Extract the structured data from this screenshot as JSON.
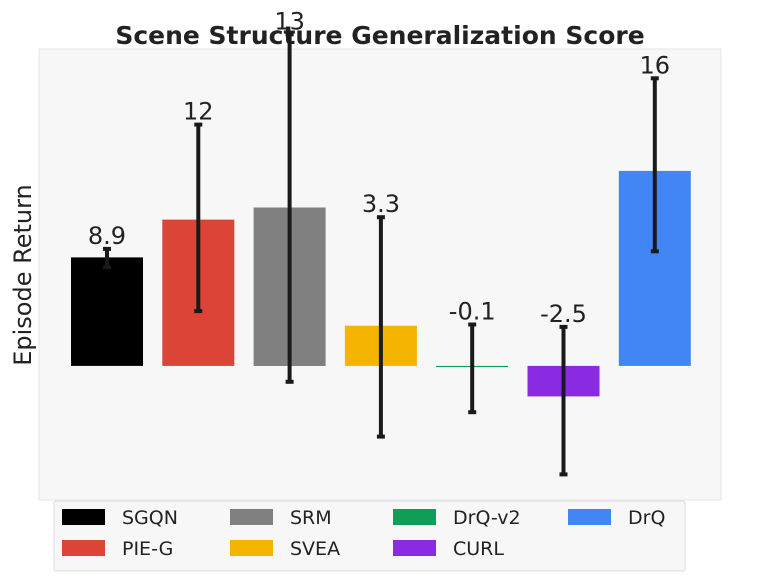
{
  "chart_data": {
    "type": "bar",
    "title": "Scene Structure Generalization Score",
    "xlabel": "",
    "ylabel": "Episode Return",
    "ylim": [
      -11,
      26
    ],
    "grid": false,
    "legend_position": "bottom",
    "categories": [
      "SGQN",
      "PIE-G",
      "SRM",
      "SVEA",
      "DrQ-v2",
      "CURL",
      "DrQ"
    ],
    "values": [
      8.9,
      12,
      13,
      3.3,
      -0.1,
      -2.5,
      16
    ],
    "error_low": [
      8.1,
      4.5,
      -1.3,
      -5.8,
      -3.8,
      -8.9,
      9.4
    ],
    "error_high": [
      9.6,
      19.8,
      27.2,
      12.2,
      3.4,
      3.2,
      23.6
    ],
    "labels": [
      "8.9",
      "12",
      "13",
      "3.3",
      "-0.1",
      "-2.5",
      "16"
    ],
    "colors": [
      "#000000",
      "#db4437",
      "#808080",
      "#f4b400",
      "#0f9d58",
      "#8a2be2",
      "#4285f4"
    ],
    "legend_order": [
      "SGQN",
      "SRM",
      "DrQ-v2",
      "DrQ",
      "PIE-G",
      "SVEA",
      "CURL"
    ]
  }
}
